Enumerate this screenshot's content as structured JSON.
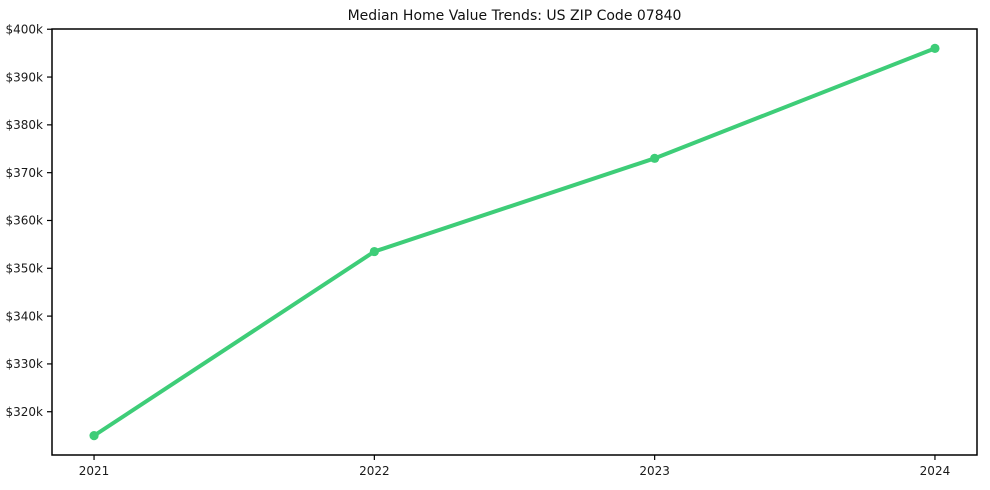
{
  "title": "Median Home Value Trends: US ZIP Code 07840",
  "chart_data": {
    "type": "line",
    "title": "Median Home Value Trends: US ZIP Code 07840",
    "xlabel": "",
    "ylabel": "",
    "x": [
      2021,
      2022,
      2023,
      2024
    ],
    "x_labels": [
      "2021",
      "2022",
      "2023",
      "2024"
    ],
    "series": [
      {
        "name": "Median Home Value",
        "values": [
          315000,
          353500,
          373000,
          396000
        ]
      }
    ],
    "ytick_values": [
      320000,
      330000,
      340000,
      350000,
      360000,
      370000,
      380000,
      390000,
      400000
    ],
    "ytick_labels": [
      "$320k",
      "$330k",
      "$340k",
      "$350k",
      "$360k",
      "$370k",
      "$380k",
      "$390k",
      "$400k"
    ],
    "xlim": [
      2020.85,
      2024.15
    ],
    "ylim": [
      310950,
      400050
    ],
    "grid": false,
    "legend_position": "none",
    "line_color": "#3ecd78",
    "marker_color": "#3ecd78",
    "axis_color": "#000000",
    "text_color": "#1a1a1a",
    "background_color": "#ffffff"
  }
}
